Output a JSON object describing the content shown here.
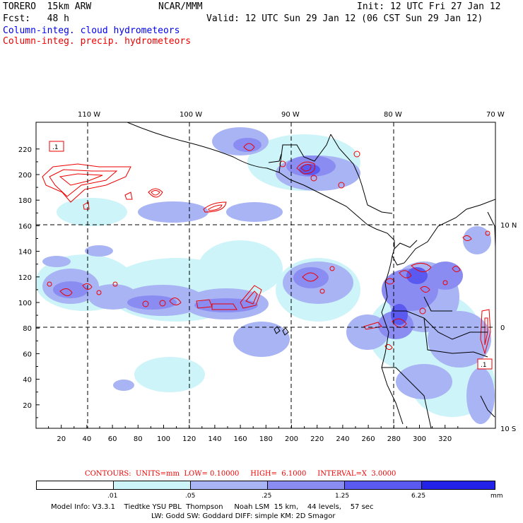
{
  "header": {
    "model": "TORERO  15km ARW",
    "center": "NCAR/MMM",
    "init": "Init: 12 UTC Fri 27 Jan 12",
    "fcst": "Fcst:   48 h",
    "valid": "Valid: 12 UTC Sun 29 Jan 12 (06 CST Sun 29 Jan 12)",
    "field_blue": "Column-integ. cloud hydrometeors",
    "field_red": "Column-integ. precip. hydrometeors"
  },
  "colors": {
    "blue_text": "#0000ee",
    "red_text": "#ee0000",
    "shade_1": "#cdf4f8",
    "shade_2": "#a8b4f4",
    "shade_3": "#8a8cf2",
    "shade_4": "#5a5af0",
    "shade_5": "#2222e8",
    "contour": "#ee0000"
  },
  "map": {
    "lon_labels_top": [
      "110 W",
      "100 W",
      "90 W",
      "80 W",
      "70 W"
    ],
    "lat_labels_right": [
      "10 N",
      "0",
      "10 S"
    ],
    "y_grid_labels": [
      "20",
      "40",
      "60",
      "80",
      "100",
      "120",
      "140",
      "160",
      "180",
      "200",
      "220"
    ],
    "x_grid_labels": [
      "20",
      "40",
      "60",
      "80",
      "100",
      "120",
      "140",
      "160",
      "180",
      "200",
      "220",
      "240",
      "260",
      "280",
      "300",
      "320"
    ],
    "box_labels": [
      ".1",
      ".1"
    ]
  },
  "contours": {
    "label": "CONTOURS:  UNITS=mm  LOW= 0.10000     HIGH=  6.1000     INTERVAL=X  3.0000"
  },
  "colorbar": {
    "labels": [
      ".01",
      ".05",
      ".25",
      "1.25",
      "6.25"
    ],
    "units": "mm"
  },
  "footer": {
    "line1": "Model Info: V3.3.1    Tiedtke YSU PBL  Thompson     Noah LSM  15 km,    44 levels,    57 sec",
    "line2": "LW: Godd SW: Goddard DIFF: simple KM: 2D Smagor"
  }
}
